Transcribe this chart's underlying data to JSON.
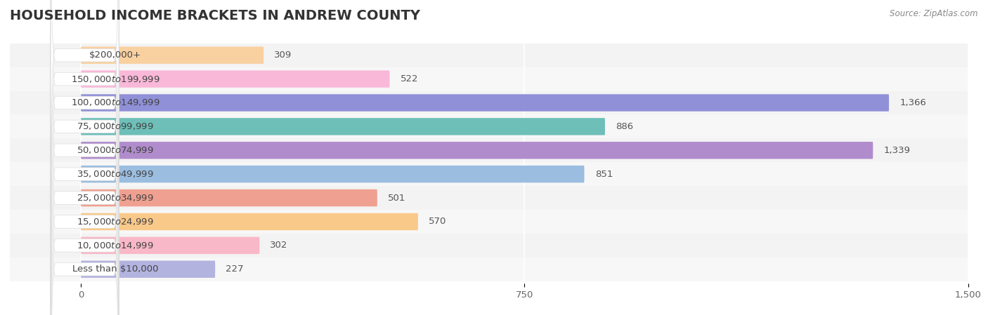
{
  "title": "HOUSEHOLD INCOME BRACKETS IN ANDREW COUNTY",
  "source": "Source: ZipAtlas.com",
  "categories": [
    "Less than $10,000",
    "$10,000 to $14,999",
    "$15,000 to $24,999",
    "$25,000 to $34,999",
    "$35,000 to $49,999",
    "$50,000 to $74,999",
    "$75,000 to $99,999",
    "$100,000 to $149,999",
    "$150,000 to $199,999",
    "$200,000+"
  ],
  "values": [
    227,
    302,
    570,
    501,
    851,
    1339,
    886,
    1366,
    522,
    309
  ],
  "bar_colors": [
    "#b3b3e0",
    "#f9b8c8",
    "#f9c98a",
    "#f0a090",
    "#9bbde0",
    "#b08ccc",
    "#6dbfb8",
    "#9090d8",
    "#f9b8d8",
    "#f9d0a0"
  ],
  "label_bg_color": "#ffffff",
  "stripe_colors": [
    "#f5f5f5",
    "#ebebeb"
  ],
  "xlim": [
    0,
    1500
  ],
  "xticks": [
    0,
    750,
    1500
  ],
  "bar_height": 0.72,
  "title_fontsize": 14,
  "label_fontsize": 9.5,
  "value_fontsize": 9.5,
  "axis_fontsize": 9.5
}
